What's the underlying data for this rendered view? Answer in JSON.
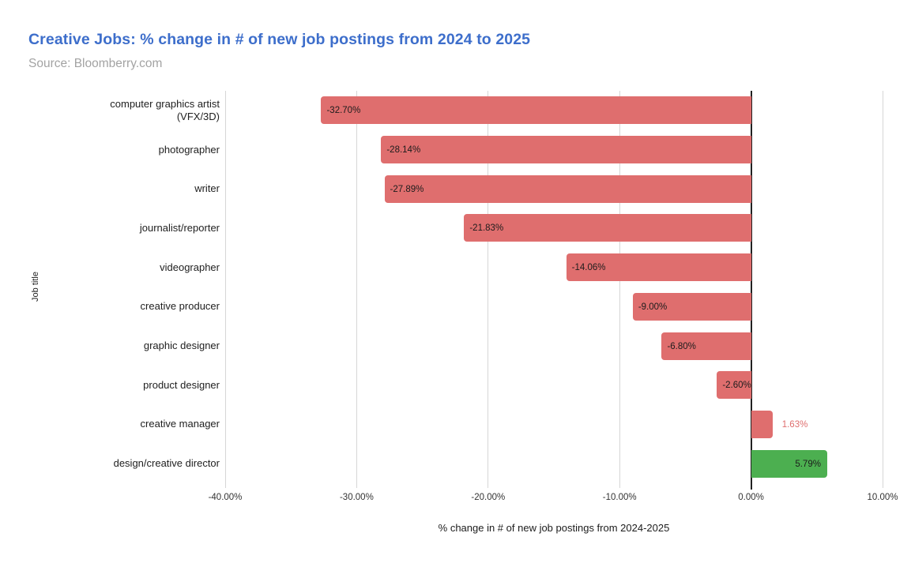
{
  "header": {
    "title": "Creative Jobs: % change in # of new job postings from 2024 to 2025",
    "subtitle": "Source: Bloomberry.com"
  },
  "colors": {
    "title_blue": "#3d6ecb",
    "subtitle_gray": "#a3a3a3",
    "negative_bar_red": "#df6e6e",
    "positive_bar_green": "#4caf50",
    "gridline_gray": "#d6d6d6",
    "zero_line_dark": "#212121",
    "text_dark": "#1c1c1c"
  },
  "chart_data": {
    "type": "bar",
    "orientation": "horizontal",
    "title": "Creative Jobs: % change in # of new job postings from 2024 to 2025",
    "source": "Source: Bloomberry.com",
    "xlabel": "% change in # of new job postings from 2024-2025",
    "ylabel": "Job title",
    "xlim": [
      -40,
      10
    ],
    "grid": true,
    "legend": false,
    "x_tick_labels": [
      "-40.00%",
      "-30.00%",
      "-20.00%",
      "-10.00%",
      "0.00%",
      "10.00%"
    ],
    "x_tick_values": [
      -40,
      -30,
      -20,
      -10,
      0,
      10
    ],
    "categories": [
      "computer graphics artist (VFX/3D)",
      "photographer",
      "writer",
      "journalist/reporter",
      "videographer",
      "creative producer",
      "graphic designer",
      "product designer",
      "creative manager",
      "design/creative director"
    ],
    "values": [
      -32.7,
      -28.14,
      -27.89,
      -21.83,
      -14.06,
      -9.0,
      -6.8,
      -2.6,
      1.63,
      5.79
    ],
    "value_labels": [
      "-32.70%",
      "-28.14%",
      "-27.89%",
      "-21.83%",
      "-14.06%",
      "-9.00%",
      "-6.80%",
      "-2.60%",
      "1.63%",
      "5.79%"
    ],
    "bar_colors": [
      "#df6e6e",
      "#df6e6e",
      "#df6e6e",
      "#df6e6e",
      "#df6e6e",
      "#df6e6e",
      "#df6e6e",
      "#df6e6e",
      "#df6e6e",
      "#4caf50"
    ]
  }
}
